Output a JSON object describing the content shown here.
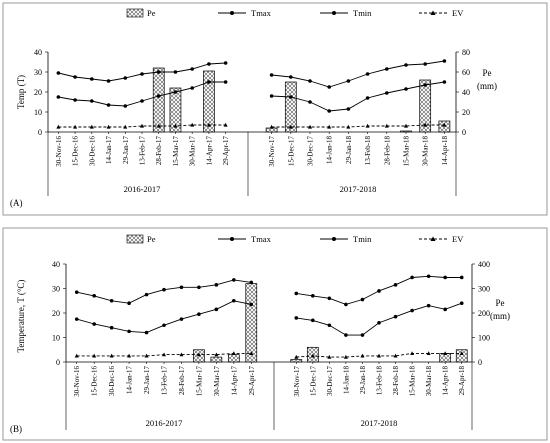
{
  "chart_data": [
    {
      "panel_label": "(A)",
      "type": "bar+line",
      "legend": {
        "pe": "Pe",
        "tmax": "Tmax",
        "tmin": "Tmin",
        "ev": "EV"
      },
      "left_axis": {
        "label": "Temp (T)",
        "ylim": [
          0,
          40
        ],
        "ticks": [
          "0",
          "10",
          "20",
          "30",
          "40"
        ]
      },
      "right_axis": {
        "label_line1": "Pe",
        "label_line2": "(mm)",
        "ylim": [
          0,
          80
        ],
        "ticks": [
          "0",
          "20",
          "40",
          "60",
          "80"
        ]
      },
      "groups": [
        {
          "season": "2016-2017",
          "x": [
            "30-Nov-16",
            "15-Dec-16",
            "30-Dec-16",
            "14-Jan-17",
            "29-Jan-17",
            "13-Feb-17",
            "28-Feb-17",
            "15-Mar-17",
            "30-Mar-17",
            "14-Apr-17",
            "29-Apr-17"
          ],
          "tmax": [
            29.5,
            27.5,
            26.5,
            25.5,
            27,
            29,
            30,
            30,
            31.5,
            34,
            34.5
          ],
          "tmin": [
            17.5,
            16,
            15.5,
            13.5,
            13,
            15.5,
            18,
            20,
            22,
            25,
            25
          ],
          "ev": [
            2.5,
            2.5,
            2.5,
            2.5,
            2.5,
            3,
            3,
            3,
            3.5,
            3.5,
            3.5
          ],
          "pe": [
            0,
            0,
            0,
            0,
            0,
            0,
            64,
            44,
            0,
            61,
            0
          ]
        },
        {
          "season": "2017-2018",
          "x": [
            "30-Nov-17",
            "15-Dec-17",
            "30-Dec-17",
            "14-Jan-18",
            "29-Jan-18",
            "13-Feb-18",
            "28-Feb-18",
            "15-Mar-18",
            "30-Mar-18",
            "14-Apr-18"
          ],
          "tmax": [
            28.5,
            27.5,
            25.5,
            22.5,
            25.5,
            29,
            31.5,
            33.5,
            34,
            35.5
          ],
          "tmin": [
            18,
            17.5,
            15,
            10.5,
            11.5,
            17,
            19.5,
            21.5,
            23.5,
            25
          ],
          "ev": [
            2.5,
            2.5,
            2.5,
            2.5,
            2.5,
            3,
            3,
            3,
            3.5,
            3.5
          ],
          "pe": [
            4,
            50,
            0,
            0,
            0,
            0,
            0,
            1,
            52,
            11
          ]
        }
      ]
    },
    {
      "panel_label": "(B)",
      "type": "bar+line",
      "legend": {
        "pe": "Pe",
        "tmax": "Tmax",
        "tmin": "Tmin",
        "ev": "EV"
      },
      "left_axis": {
        "label": "Temperature, T (°C)",
        "ylim": [
          0,
          40
        ],
        "ticks": [
          "0",
          "10",
          "20",
          "30",
          "40"
        ]
      },
      "right_axis": {
        "label_line1": "Pe",
        "label_line2": "(mm)",
        "ylim": [
          0,
          400
        ],
        "ticks": [
          "0",
          "100",
          "200",
          "300",
          "400"
        ]
      },
      "groups": [
        {
          "season": "2016-2017",
          "x": [
            "30-Nov-16",
            "15-Dec-16",
            "30-Dec-16",
            "14-Jan-17",
            "29-Jan-17",
            "13-Feb-17",
            "28-Feb-17",
            "15-Mar-17",
            "30-Mar-17",
            "14-Apr-17",
            "29-Apr-17"
          ],
          "tmax": [
            28.5,
            27,
            25,
            24,
            27.5,
            29.5,
            30.5,
            30.5,
            31.5,
            33.5,
            32.5
          ],
          "tmin": [
            17.5,
            15.5,
            14,
            12.5,
            12,
            15,
            17.5,
            19.5,
            21.5,
            25,
            23.5
          ],
          "ev": [
            2.5,
            2.5,
            2.5,
            2.5,
            2.5,
            3,
            3,
            3,
            3,
            3.5,
            3.5
          ],
          "pe": [
            0,
            0,
            0,
            0,
            0,
            0,
            0,
            50,
            20,
            30,
            320
          ]
        },
        {
          "season": "2017-2018",
          "x": [
            "30-Nov-17",
            "15-Dec-17",
            "30-Dec-17",
            "14-Jan-18",
            "29-Jan-18",
            "13-Feb-18",
            "28-Feb-18",
            "15-Mar-18",
            "30-Mar-18",
            "14-Apr-18",
            "29-Apr-18"
          ],
          "tmax": [
            28,
            27,
            26,
            23.5,
            25.5,
            29,
            31.5,
            34.5,
            35,
            34.5,
            34.5
          ],
          "tmin": [
            18,
            17,
            15,
            11,
            11,
            16,
            18.5,
            21,
            23,
            21.5,
            24
          ],
          "ev": [
            2,
            2.5,
            2,
            2,
            2.5,
            2.5,
            2.5,
            3.5,
            3.5,
            3.5,
            3.5
          ],
          "pe": [
            10,
            60,
            0,
            0,
            0,
            0,
            0,
            0,
            0,
            35,
            50
          ]
        }
      ]
    }
  ]
}
